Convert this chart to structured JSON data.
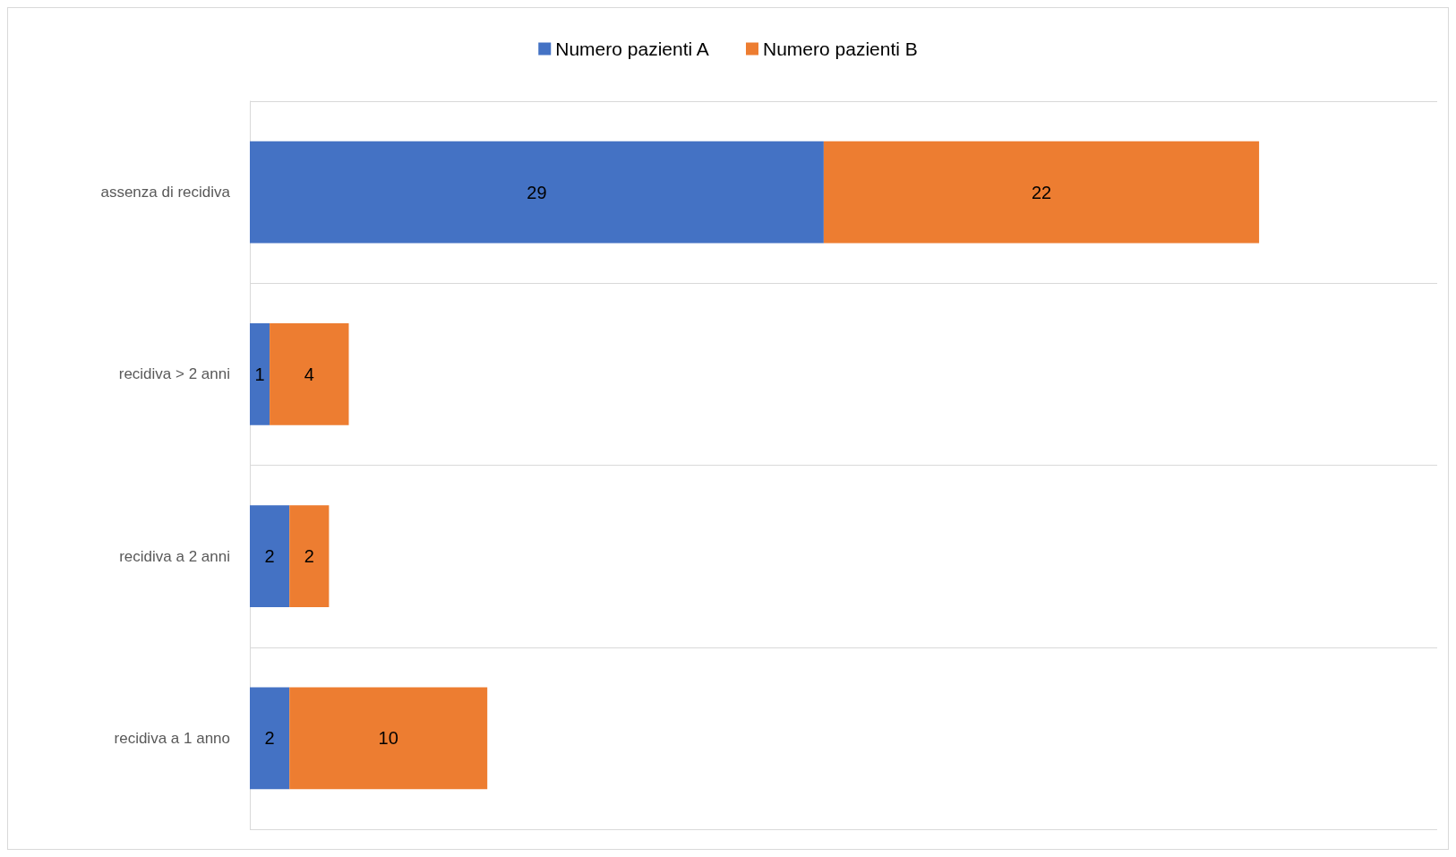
{
  "chart_data": {
    "type": "bar",
    "orientation": "horizontal",
    "stacked": true,
    "data_labels": true,
    "grid": "y",
    "legend": "top",
    "categories": [
      "assenza di recidiva",
      "recidiva > 2 anni",
      "recidiva a 2 anni",
      "recidiva a 1 anno"
    ],
    "series": [
      {
        "name": "Numero pazienti A",
        "color": "#4472c4",
        "values": [
          29,
          1,
          2,
          2
        ]
      },
      {
        "name": "Numero pazienti B",
        "color": "#ed7d31",
        "values": [
          22,
          4,
          2,
          10
        ]
      }
    ]
  }
}
